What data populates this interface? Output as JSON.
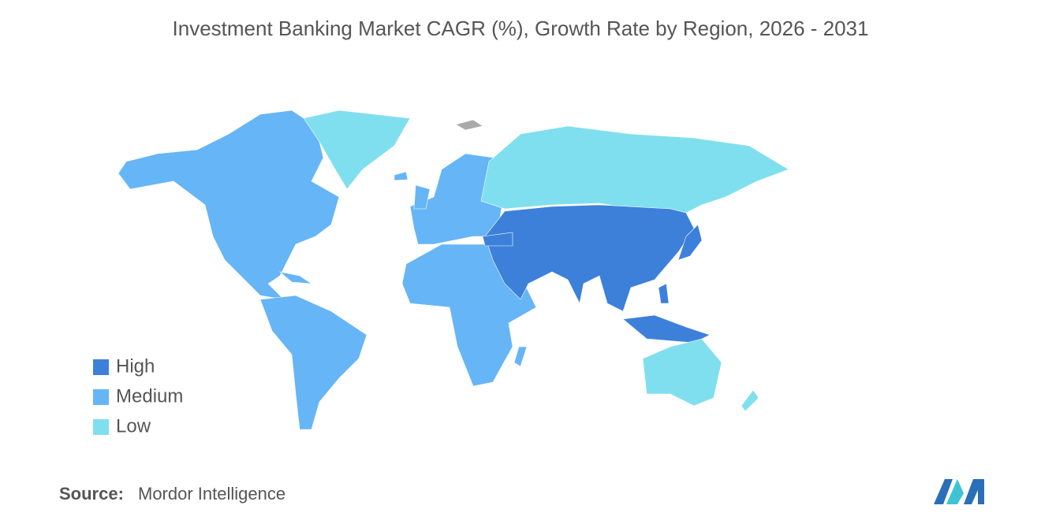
{
  "title": "Investment Banking Market CAGR (%), Growth Rate by Region, 2026 - 2031",
  "legend": {
    "items": [
      {
        "label": "High",
        "color": "#3d80da"
      },
      {
        "label": "Medium",
        "color": "#66b5f6"
      },
      {
        "label": "Low",
        "color": "#80dfee"
      }
    ]
  },
  "source": {
    "label": "Source:",
    "name": "Mordor Intelligence"
  }
}
